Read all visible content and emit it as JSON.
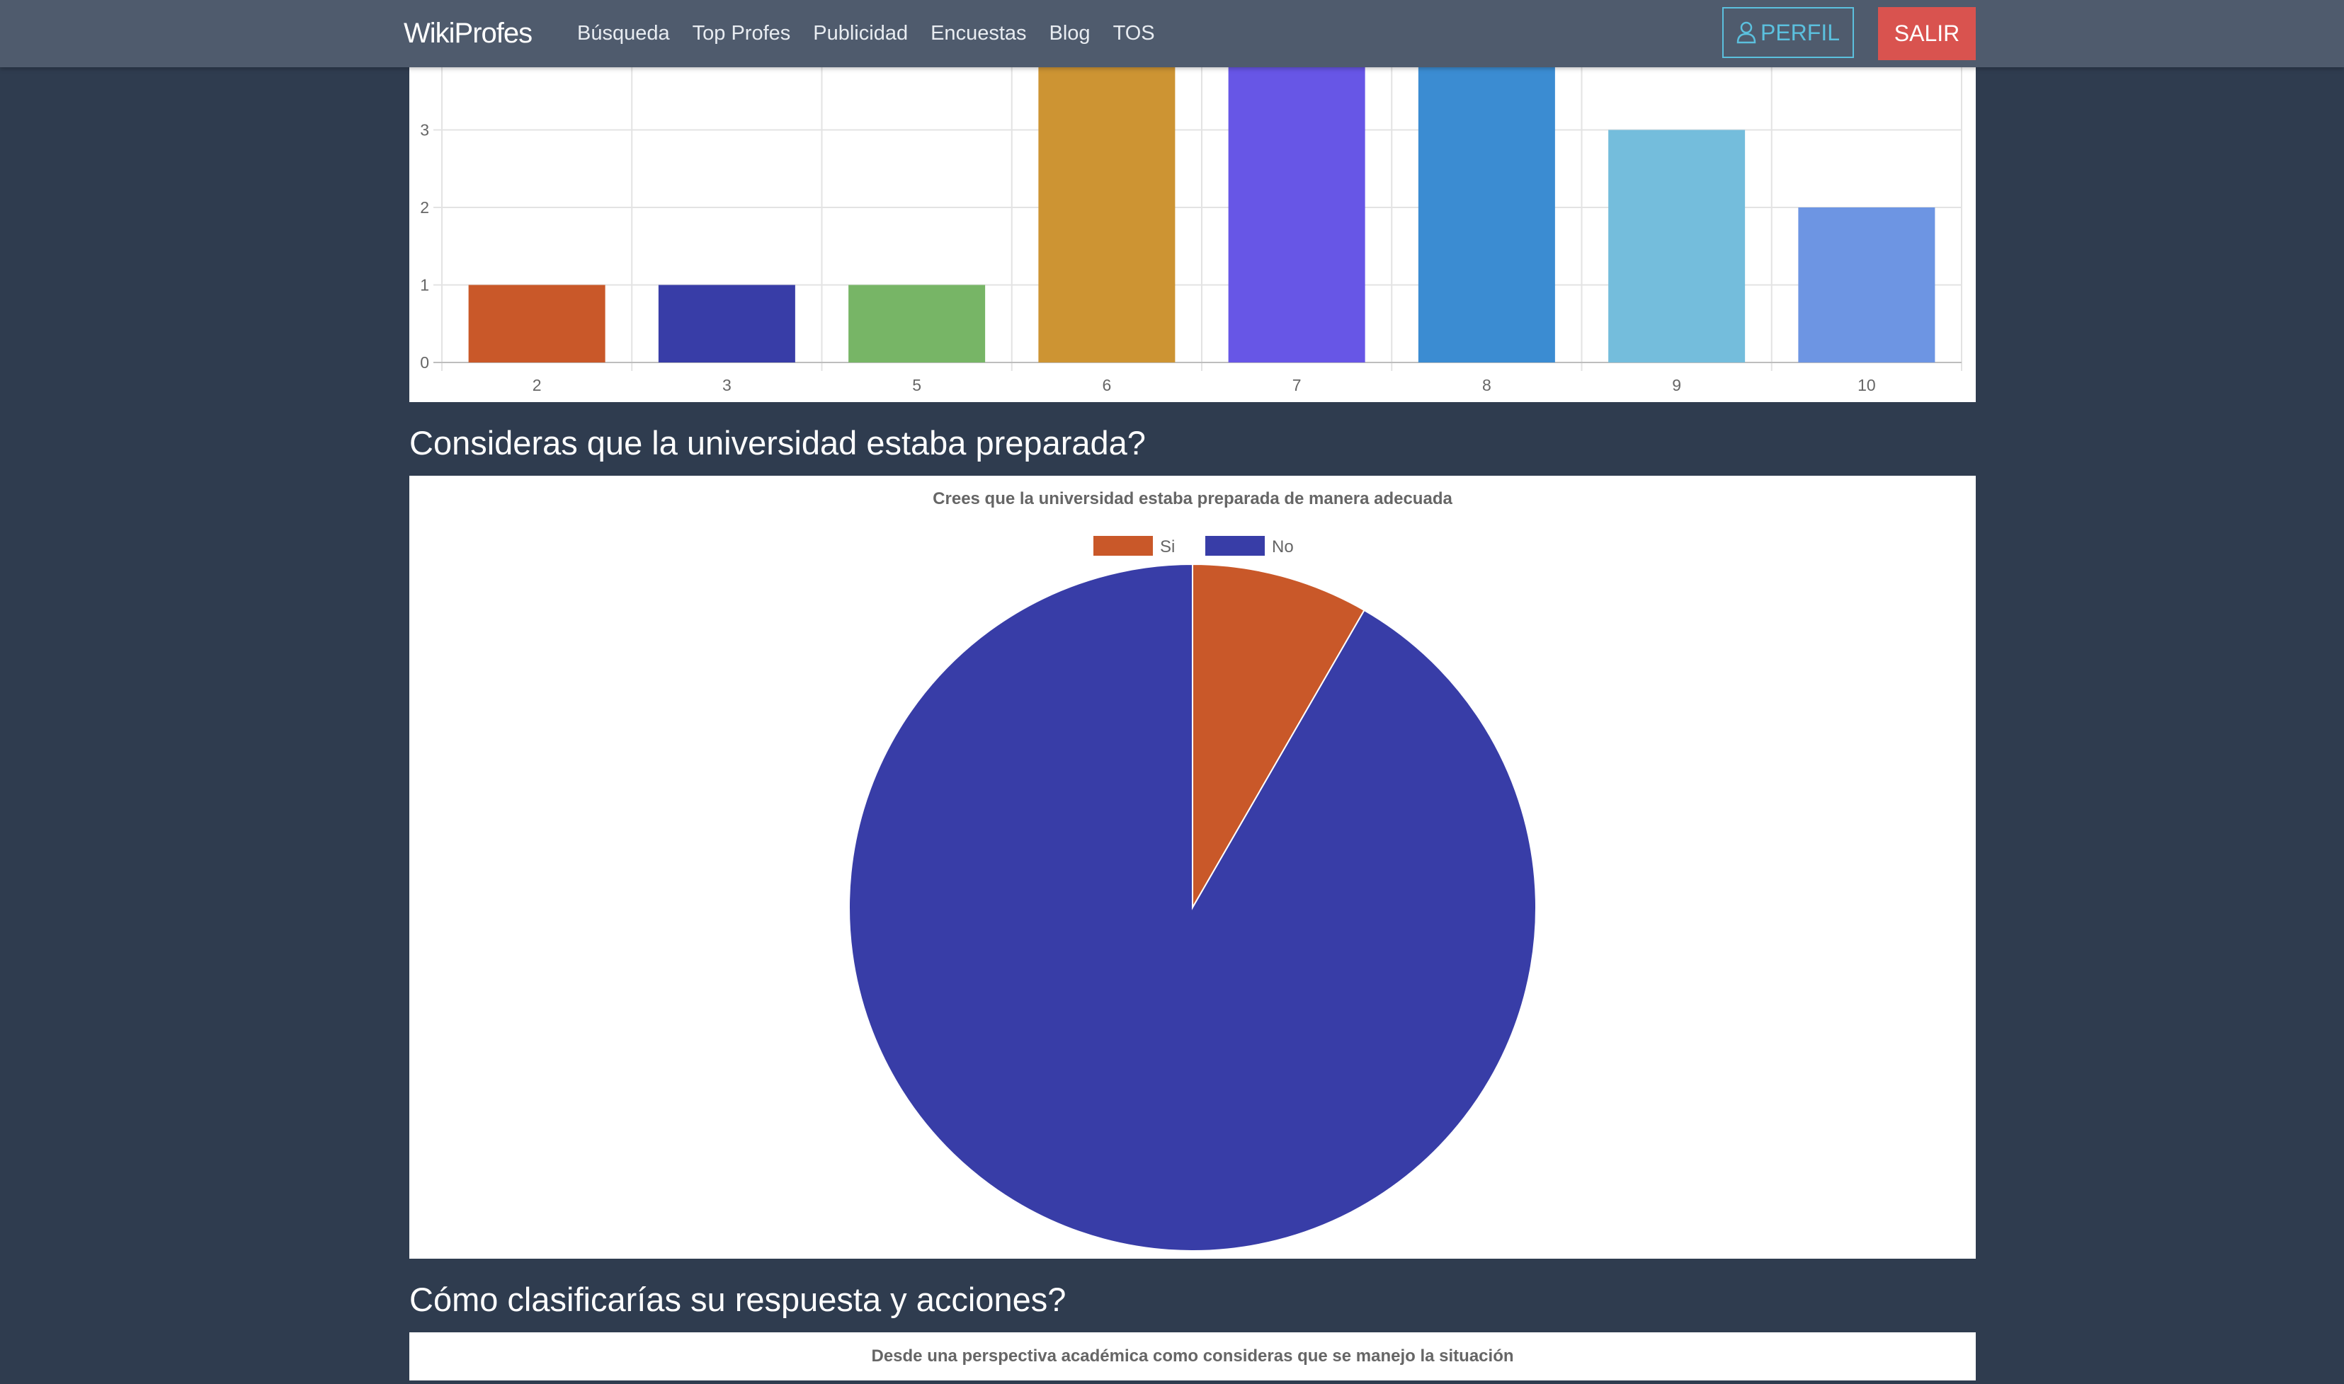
{
  "nav": {
    "brand": "WikiProfes",
    "links": [
      "Búsqueda",
      "Top Profes",
      "Publicidad",
      "Encuestas",
      "Blog",
      "TOS"
    ],
    "perfil_label": "PERFIL",
    "salir_label": "SALIR",
    "perfil_icon": "user-icon"
  },
  "sections": {
    "q2_heading": "Consideras que la universidad estaba preparada?",
    "q3_heading": "Cómo clasificarías su respuesta y acciones?"
  },
  "colors": {
    "background": "#2f3c4f",
    "navbar": "#4f5b6d",
    "perfil": "#5bc0de",
    "salir": "#d9534f"
  },
  "chart_data": [
    {
      "type": "bar",
      "categories": [
        "2",
        "3",
        "5",
        "6",
        "7",
        "8",
        "9",
        "10"
      ],
      "values": [
        1,
        1,
        1,
        4,
        4,
        4,
        3,
        2
      ],
      "colors": [
        "#c95829",
        "#383da7",
        "#77b566",
        "#cd9433",
        "#6756e6",
        "#3b8cd2",
        "#74bddc",
        "#6d95e3"
      ],
      "yticks": [
        0,
        1,
        2,
        3
      ],
      "ylim": [
        0,
        4
      ],
      "grid": true,
      "legend": "none"
    },
    {
      "type": "pie",
      "title": "Crees que la universidad estaba preparada de manera adecuada",
      "labels": [
        "Si",
        "No"
      ],
      "values": [
        1,
        11
      ],
      "colors": [
        "#c95829",
        "#383da7"
      ],
      "legend": "top"
    },
    {
      "type": "pie",
      "title": "Desde una perspectiva académica como consideras que se manejo la situación"
    }
  ]
}
